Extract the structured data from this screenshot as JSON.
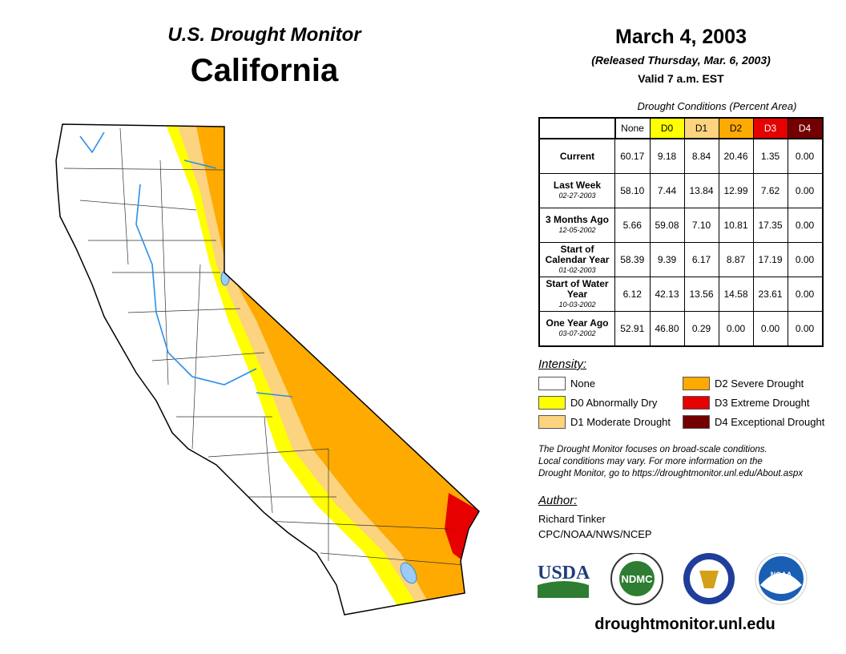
{
  "header": {
    "title": "U.S. Drought Monitor",
    "region": "California",
    "date": "March 4, 2003",
    "released": "(Released Thursday, Mar. 6, 2003)",
    "valid": "Valid 7 a.m. EST"
  },
  "table": {
    "caption": "Drought Conditions (Percent Area)",
    "columns": [
      "None",
      "D0",
      "D1",
      "D2",
      "D3",
      "D4"
    ],
    "rows": [
      {
        "label": "Current",
        "date": "",
        "values": [
          "60.17",
          "9.18",
          "8.84",
          "20.46",
          "1.35",
          "0.00"
        ]
      },
      {
        "label": "Last Week",
        "date": "02-27-2003",
        "values": [
          "58.10",
          "7.44",
          "13.84",
          "12.99",
          "7.62",
          "0.00"
        ]
      },
      {
        "label": "3 Months Ago",
        "date": "12-05-2002",
        "values": [
          "5.66",
          "59.08",
          "7.10",
          "10.81",
          "17.35",
          "0.00"
        ]
      },
      {
        "label": "Start of Calendar Year",
        "date": "01-02-2003",
        "values": [
          "58.39",
          "9.39",
          "6.17",
          "8.87",
          "17.19",
          "0.00"
        ]
      },
      {
        "label": "Start of Water Year",
        "date": "10-03-2002",
        "values": [
          "6.12",
          "42.13",
          "13.56",
          "14.58",
          "23.61",
          "0.00"
        ]
      },
      {
        "label": "One Year Ago",
        "date": "03-07-2002",
        "values": [
          "52.91",
          "46.80",
          "0.29",
          "0.00",
          "0.00",
          "0.00"
        ]
      }
    ]
  },
  "legend": {
    "title": "Intensity:",
    "items": [
      {
        "label": "None",
        "color": "#ffffff"
      },
      {
        "label": "D0 Abnormally Dry",
        "color": "#ffff00"
      },
      {
        "label": "D1 Moderate Drought",
        "color": "#fcd37f"
      },
      {
        "label": "D2 Severe Drought",
        "color": "#ffaa00"
      },
      {
        "label": "D3 Extreme Drought",
        "color": "#e60000"
      },
      {
        "label": "D4 Exceptional Drought",
        "color": "#730000"
      }
    ]
  },
  "note": [
    "The Drought Monitor focuses on broad-scale conditions.",
    "Local conditions may vary. For more information on the",
    "Drought Monitor, go to https://droughtmonitor.unl.edu/About.aspx"
  ],
  "author": {
    "label": "Author:",
    "name": "Richard Tinker",
    "org": "CPC/NOAA/NWS/NCEP"
  },
  "logos": {
    "usda": "USDA",
    "ndmc": "NDMC",
    "noaa": "NOAA"
  },
  "footer": {
    "url": "droughtmonitor.unl.edu"
  }
}
